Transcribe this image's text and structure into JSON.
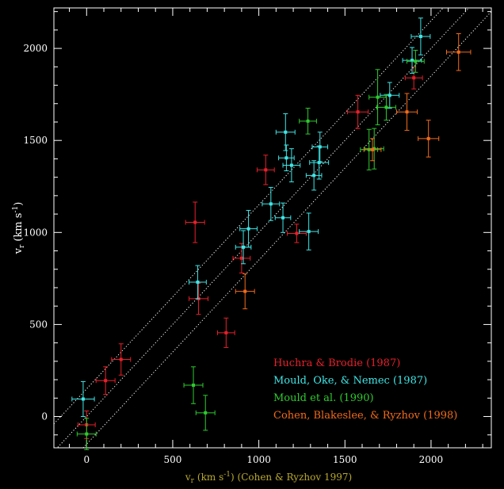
{
  "chart_data": {
    "type": "scatter",
    "xlabel": "v_r (km s^-1) (Cohen & Ryzhov 1997)",
    "xlabel_parts": {
      "main": "v",
      "sub": "r",
      "units": "(km s",
      "sup": "-1",
      "tail": ") (Cohen & Ryzhov 1997)"
    },
    "ylabel_parts": {
      "main": "v",
      "sub": "r",
      "units": "(km s",
      "sup": "-1",
      "tail": ")"
    },
    "xlim": [
      -190,
      2350
    ],
    "ylim": [
      -170,
      2220
    ],
    "x_ticks": [
      0,
      500,
      1000,
      1500,
      2000
    ],
    "y_ticks": [
      0,
      500,
      1000,
      1500,
      2000
    ],
    "x_tick_labels": [
      "0",
      "500",
      "1000",
      "1500",
      "2000"
    ],
    "y_tick_labels": [
      "0",
      "500",
      "1000",
      "1500",
      "2000"
    ],
    "grid": false,
    "legend_placement": "lower-right",
    "reference_lines": [
      {
        "style": "dotted",
        "offset": 0
      },
      {
        "style": "dotted",
        "offset": 150
      },
      {
        "style": "dotted",
        "offset": -150
      }
    ],
    "series": [
      {
        "name": "Huchra & Brodie (1987)",
        "color": "#e8202a",
        "points": [
          {
            "x": 0,
            "y": -45,
            "xerr": 50,
            "yerr": 75
          },
          {
            "x": 110,
            "y": 195,
            "xerr": 55,
            "yerr": 75
          },
          {
            "x": 200,
            "y": 310,
            "xerr": 55,
            "yerr": 85
          },
          {
            "x": 630,
            "y": 1055,
            "xerr": 55,
            "yerr": 110
          },
          {
            "x": 650,
            "y": 640,
            "xerr": 55,
            "yerr": 85
          },
          {
            "x": 810,
            "y": 455,
            "xerr": 50,
            "yerr": 80
          },
          {
            "x": 900,
            "y": 860,
            "xerr": 50,
            "yerr": 80
          },
          {
            "x": 1040,
            "y": 1340,
            "xerr": 50,
            "yerr": 80
          },
          {
            "x": 1220,
            "y": 995,
            "xerr": 55,
            "yerr": 50
          },
          {
            "x": 1575,
            "y": 1655,
            "xerr": 60,
            "yerr": 90
          },
          {
            "x": 1900,
            "y": 1840,
            "xerr": 50,
            "yerr": 60
          }
        ]
      },
      {
        "name": "Mould, Oke, & Nemec (1987)",
        "color": "#3fe6e6",
        "points": [
          {
            "x": -20,
            "y": 95,
            "xerr": 65,
            "yerr": 95
          },
          {
            "x": 645,
            "y": 730,
            "xerr": 50,
            "yerr": 90
          },
          {
            "x": 910,
            "y": 920,
            "xerr": 45,
            "yerr": 90
          },
          {
            "x": 940,
            "y": 1020,
            "xerr": 50,
            "yerr": 100
          },
          {
            "x": 1070,
            "y": 1155,
            "xerr": 50,
            "yerr": 90
          },
          {
            "x": 1140,
            "y": 1080,
            "xerr": 45,
            "yerr": 80
          },
          {
            "x": 1155,
            "y": 1545,
            "xerr": 55,
            "yerr": 100
          },
          {
            "x": 1160,
            "y": 1405,
            "xerr": 45,
            "yerr": 70
          },
          {
            "x": 1190,
            "y": 1365,
            "xerr": 50,
            "yerr": 90
          },
          {
            "x": 1290,
            "y": 1005,
            "xerr": 55,
            "yerr": 100
          },
          {
            "x": 1320,
            "y": 1310,
            "xerr": 45,
            "yerr": 80
          },
          {
            "x": 1350,
            "y": 1380,
            "xerr": 55,
            "yerr": 90
          },
          {
            "x": 1355,
            "y": 1465,
            "xerr": 45,
            "yerr": 80
          },
          {
            "x": 1760,
            "y": 1745,
            "xerr": 55,
            "yerr": 70
          },
          {
            "x": 1890,
            "y": 1935,
            "xerr": 55,
            "yerr": 70
          },
          {
            "x": 1940,
            "y": 2065,
            "xerr": 55,
            "yerr": 100
          }
        ]
      },
      {
        "name": "Mould et al. (1990)",
        "color": "#2ecb2e",
        "points": [
          {
            "x": 0,
            "y": -95,
            "xerr": 55,
            "yerr": 85
          },
          {
            "x": 620,
            "y": 170,
            "xerr": 55,
            "yerr": 100
          },
          {
            "x": 690,
            "y": 20,
            "xerr": 55,
            "yerr": 95
          },
          {
            "x": 1285,
            "y": 1605,
            "xerr": 50,
            "yerr": 70
          },
          {
            "x": 1640,
            "y": 1450,
            "xerr": 50,
            "yerr": 110
          },
          {
            "x": 1670,
            "y": 1455,
            "xerr": 55,
            "yerr": 110
          },
          {
            "x": 1690,
            "y": 1735,
            "xerr": 50,
            "yerr": 150
          },
          {
            "x": 1740,
            "y": 1680,
            "xerr": 55,
            "yerr": 70
          },
          {
            "x": 1910,
            "y": 1930,
            "xerr": 50,
            "yerr": 60
          }
        ]
      },
      {
        "name": "Cohen, Blakeslee, & Ryzhov (1998)",
        "color": "#f26b1a",
        "points": [
          {
            "x": 920,
            "y": 680,
            "xerr": 55,
            "yerr": 95
          },
          {
            "x": 1660,
            "y": 1450,
            "xerr": 50,
            "yerr": 60
          },
          {
            "x": 1860,
            "y": 1655,
            "xerr": 60,
            "yerr": 100
          },
          {
            "x": 1985,
            "y": 1510,
            "xerr": 60,
            "yerr": 100
          },
          {
            "x": 2160,
            "y": 1980,
            "xerr": 70,
            "yerr": 100
          }
        ]
      }
    ]
  }
}
